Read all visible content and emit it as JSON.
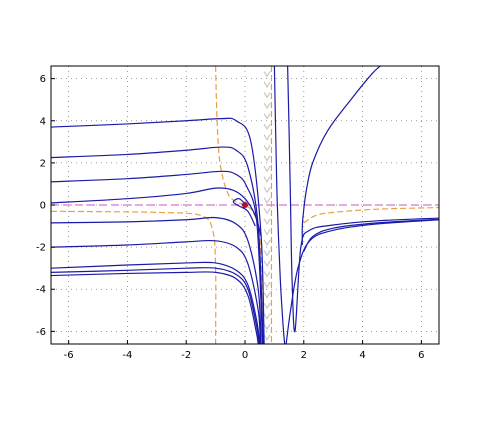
{
  "chart_data": {
    "type": "line",
    "title": "",
    "xlabel": "",
    "ylabel": "",
    "xlim": [
      -6.6,
      6.6
    ],
    "ylim": [
      -6.6,
      6.6
    ],
    "grid": true,
    "x_ticks": [
      -6,
      -4,
      -2,
      0,
      2,
      4,
      6
    ],
    "y_ticks": [
      -6,
      -4,
      -2,
      0,
      2,
      4,
      6
    ],
    "x_tick_labels": [
      "-6",
      "-4",
      "-2",
      "0",
      "2",
      "4",
      "6"
    ],
    "y_tick_labels": [
      "-6",
      "-4",
      "-2",
      "0",
      "2",
      "4",
      "6"
    ],
    "colors": {
      "trajectory": "#1a1aa8",
      "nullcline": "#e8a040",
      "axis_line": "#e070d0",
      "equilibrium": "#b01030",
      "vector_arrows": "#c8c8c8",
      "grid": "#808080"
    },
    "equilibrium_point": {
      "x": 0,
      "y": 0
    },
    "horizontal_line_y": 0,
    "trajectories": [
      {
        "points": [
          [
            -6.6,
            3.7
          ],
          [
            -4,
            3.85
          ],
          [
            -2,
            4.0
          ],
          [
            -0.8,
            4.1
          ],
          [
            -0.3,
            4.0
          ],
          [
            0.2,
            3.0
          ],
          [
            0.55,
            -1.5
          ],
          [
            0.65,
            -6.6
          ]
        ]
      },
      {
        "points": [
          [
            -6.6,
            2.25
          ],
          [
            -4,
            2.4
          ],
          [
            -2,
            2.6
          ],
          [
            -0.8,
            2.75
          ],
          [
            -0.3,
            2.6
          ],
          [
            0.1,
            1.8
          ],
          [
            0.45,
            -1.0
          ],
          [
            0.62,
            -6.6
          ]
        ]
      },
      {
        "points": [
          [
            -6.6,
            1.1
          ],
          [
            -4,
            1.25
          ],
          [
            -2,
            1.45
          ],
          [
            -0.8,
            1.6
          ],
          [
            -0.3,
            1.45
          ],
          [
            0.05,
            0.9
          ],
          [
            0.4,
            -0.8
          ],
          [
            0.6,
            -6.6
          ]
        ]
      },
      {
        "points": [
          [
            -6.6,
            0.1
          ],
          [
            -4,
            0.3
          ],
          [
            -2,
            0.55
          ],
          [
            -1.0,
            0.8
          ],
          [
            -0.4,
            0.7
          ],
          [
            0.0,
            0.3
          ],
          [
            0.35,
            -0.5
          ],
          [
            0.55,
            -1.5
          ]
        ]
      },
      {
        "points": [
          [
            -6.6,
            -0.85
          ],
          [
            -4,
            -0.8
          ],
          [
            -2,
            -0.7
          ],
          [
            -1.0,
            -0.6
          ],
          [
            -0.3,
            -0.9
          ],
          [
            0.1,
            -1.7
          ],
          [
            0.45,
            -4.0
          ],
          [
            0.55,
            -6.6
          ]
        ]
      },
      {
        "points": [
          [
            -6.6,
            -2.0
          ],
          [
            -4,
            -1.9
          ],
          [
            -2,
            -1.75
          ],
          [
            -1.0,
            -1.7
          ],
          [
            -0.3,
            -2.0
          ],
          [
            0.1,
            -2.8
          ],
          [
            0.45,
            -5.0
          ],
          [
            0.52,
            -6.6
          ]
        ]
      },
      {
        "points": [
          [
            -6.6,
            -3.0
          ],
          [
            -4,
            -2.85
          ],
          [
            -2,
            -2.75
          ],
          [
            -1.0,
            -2.75
          ],
          [
            -0.3,
            -3.1
          ],
          [
            0.1,
            -3.8
          ],
          [
            0.4,
            -5.5
          ],
          [
            0.5,
            -6.6
          ]
        ]
      },
      {
        "points": [
          [
            -6.6,
            -3.2
          ],
          [
            -4,
            -3.1
          ],
          [
            -2,
            -3.0
          ],
          [
            -1.0,
            -3.0
          ],
          [
            -0.3,
            -3.3
          ],
          [
            0.1,
            -4.0
          ],
          [
            0.4,
            -5.8
          ],
          [
            0.48,
            -6.6
          ]
        ]
      },
      {
        "points": [
          [
            -6.6,
            -3.35
          ],
          [
            -4,
            -3.25
          ],
          [
            -2,
            -3.2
          ],
          [
            -1.0,
            -3.2
          ],
          [
            -0.3,
            -3.5
          ],
          [
            0.1,
            -4.3
          ],
          [
            0.38,
            -6.0
          ],
          [
            0.45,
            -6.6
          ]
        ]
      },
      {
        "points": [
          [
            0.02,
            0.02
          ],
          [
            -0.2,
            0.3
          ],
          [
            -0.4,
            0.15
          ],
          [
            -0.2,
            -0.05
          ],
          [
            0.1,
            -0.3
          ],
          [
            0.35,
            -1.0
          ]
        ]
      },
      {
        "points": [
          [
            1.0,
            6.6
          ],
          [
            1.05,
            3.0
          ],
          [
            1.1,
            0.0
          ],
          [
            1.2,
            -3.5
          ],
          [
            1.3,
            -5.8
          ],
          [
            1.35,
            -6.6
          ]
        ]
      },
      {
        "points": [
          [
            1.45,
            6.6
          ],
          [
            1.5,
            3.5
          ],
          [
            1.55,
            0.0
          ],
          [
            1.6,
            -3.5
          ],
          [
            1.7,
            -6.0
          ],
          [
            1.9,
            -2.0
          ],
          [
            2.2,
            -1.2
          ],
          [
            3.0,
            -0.95
          ],
          [
            4.5,
            -0.75
          ],
          [
            6.6,
            -0.62
          ]
        ]
      },
      {
        "points": [
          [
            1.95,
            -1.9
          ],
          [
            1.95,
            -1.0
          ],
          [
            2.0,
            -0.2
          ],
          [
            2.1,
            0.8
          ],
          [
            2.3,
            2.0
          ],
          [
            2.8,
            3.5
          ],
          [
            3.6,
            5.0
          ],
          [
            4.3,
            6.2
          ],
          [
            4.6,
            6.6
          ]
        ]
      },
      {
        "points": [
          [
            2.0,
            -2.2
          ],
          [
            2.3,
            -1.5
          ],
          [
            3.0,
            -1.1
          ],
          [
            4.5,
            -0.85
          ],
          [
            6.6,
            -0.68
          ]
        ]
      },
      {
        "points": [
          [
            1.4,
            -6.6
          ],
          [
            1.55,
            -5.0
          ],
          [
            1.8,
            -3.0
          ],
          [
            2.2,
            -1.7
          ],
          [
            3.0,
            -1.2
          ],
          [
            4.5,
            -0.9
          ],
          [
            6.6,
            -0.7
          ]
        ]
      }
    ],
    "nullclines": [
      {
        "points": [
          [
            -1.0,
            6.6
          ],
          [
            -0.95,
            4.0
          ],
          [
            -0.85,
            2.0
          ],
          [
            -0.6,
            0.6
          ],
          [
            -0.3,
            0.15
          ],
          [
            0.0,
            0.0
          ],
          [
            0.3,
            -0.4
          ],
          [
            0.5,
            -1.5
          ],
          [
            0.6,
            -4.0
          ],
          [
            0.65,
            -6.6
          ]
        ]
      },
      {
        "points": [
          [
            -6.6,
            -0.3
          ],
          [
            -3.0,
            -0.35
          ],
          [
            -1.5,
            -0.5
          ],
          [
            -1.1,
            -1.2
          ],
          [
            -1.0,
            -3.0
          ],
          [
            -1.0,
            -6.6
          ]
        ]
      },
      {
        "points": [
          [
            0.9,
            6.6
          ],
          [
            0.9,
            -6.6
          ]
        ]
      },
      {
        "points": [
          [
            2.0,
            -0.85
          ],
          [
            2.4,
            -0.5
          ],
          [
            3.0,
            -0.35
          ],
          [
            4.5,
            -0.2
          ],
          [
            6.6,
            -0.12
          ]
        ]
      }
    ]
  }
}
